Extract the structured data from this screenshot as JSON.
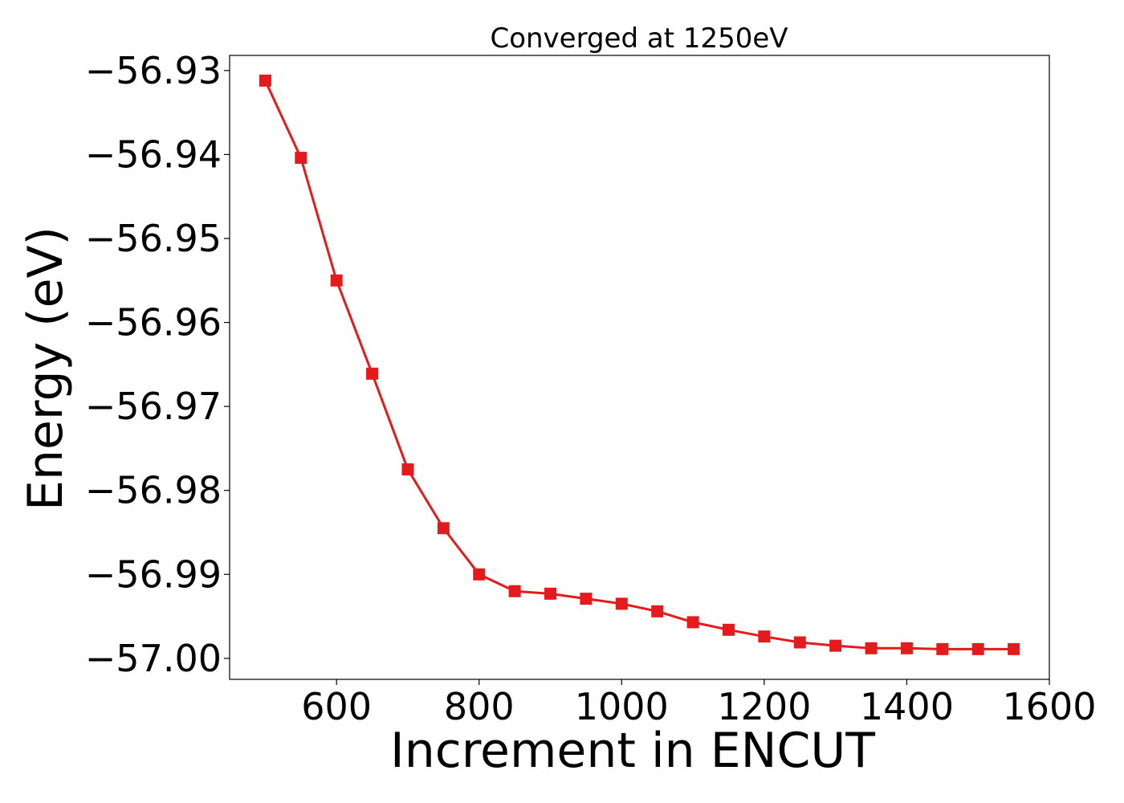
{
  "chart_data": {
    "type": "line",
    "title": "Converged at 1250eV",
    "xlabel": "Increment in ENCUT",
    "ylabel": "Energy (eV)",
    "xlim": [
      450,
      1600
    ],
    "ylim": [
      -57.0025,
      -56.9282
    ],
    "xticks": [
      600,
      800,
      1000,
      1200,
      1400,
      1600
    ],
    "yticks": [
      -56.93,
      -56.94,
      -56.95,
      -56.96,
      -56.97,
      -56.98,
      -56.99,
      -57.0
    ],
    "grid": false,
    "series": [
      {
        "marker": "square",
        "color": "#e41a1c",
        "x": [
          500,
          550,
          600,
          650,
          700,
          750,
          800,
          850,
          900,
          950,
          1000,
          1050,
          1100,
          1150,
          1200,
          1250,
          1300,
          1350,
          1400,
          1450,
          1500,
          1550
        ],
        "y": [
          -56.9312,
          -56.9404,
          -56.955,
          -56.9661,
          -56.9775,
          -56.9845,
          -56.99,
          -56.992,
          -56.9923,
          -56.9929,
          -56.9935,
          -56.9944,
          -56.9957,
          -56.9966,
          -56.9974,
          -56.9981,
          -56.9985,
          -56.9988,
          -56.9988,
          -56.9989,
          -56.9989,
          -56.9989
        ]
      }
    ]
  }
}
